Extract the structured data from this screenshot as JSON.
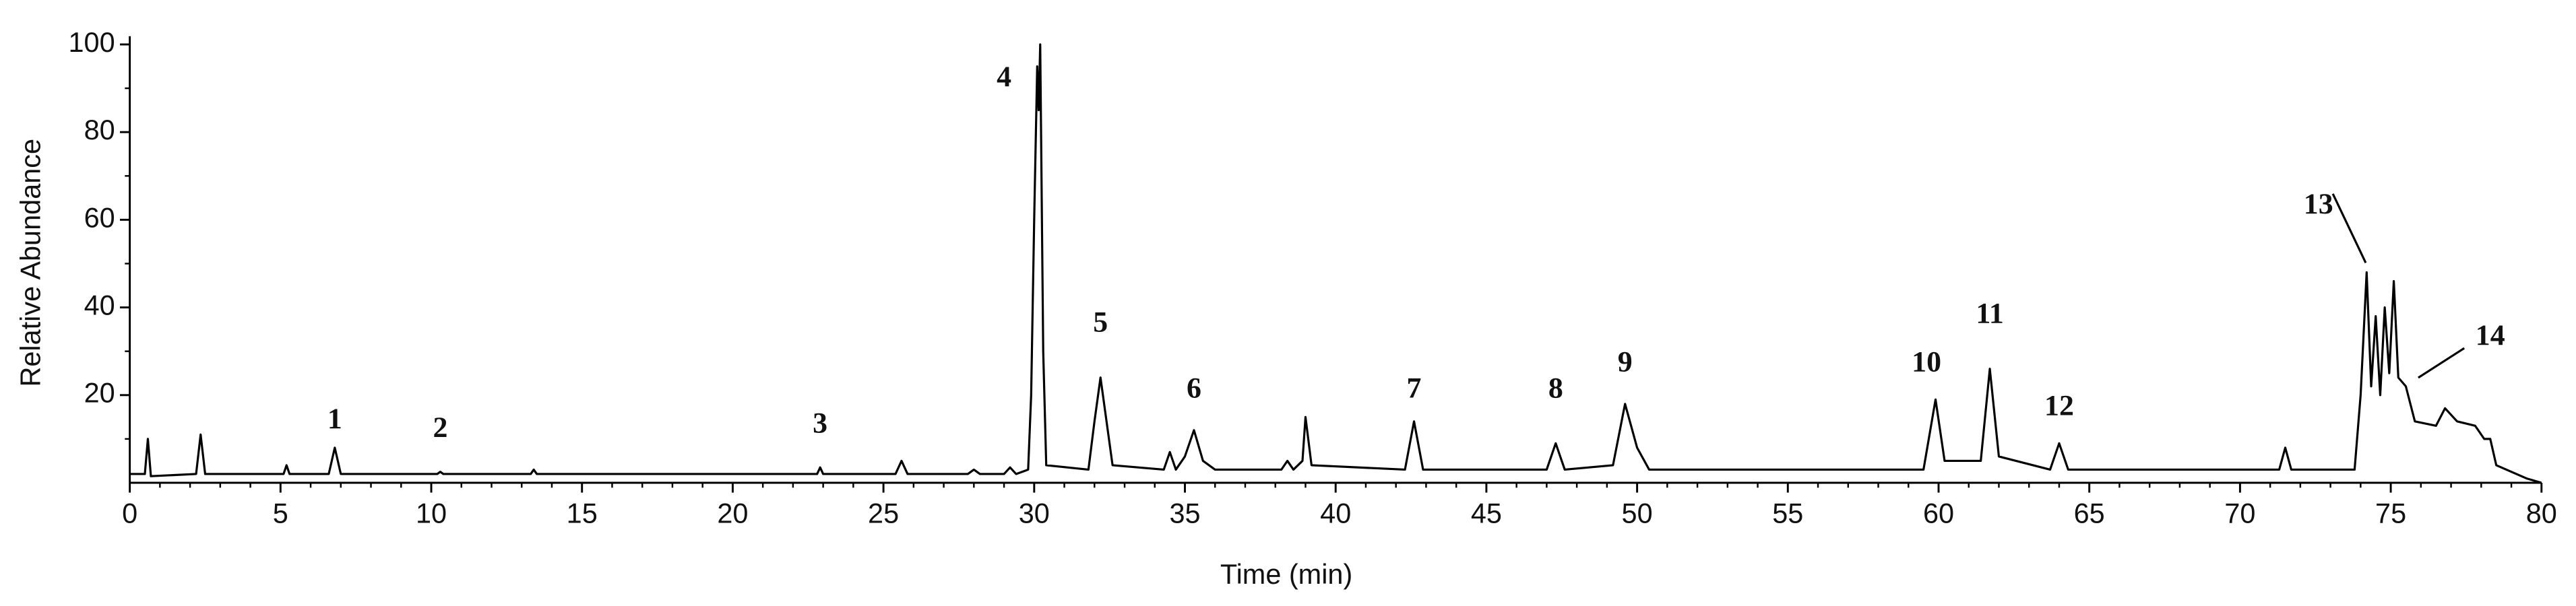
{
  "chart_data": {
    "type": "line",
    "x_label": "Time (min)",
    "y_label": "Relative Abundance",
    "xlim": [
      0,
      80
    ],
    "ylim": [
      0,
      100
    ],
    "xticks": [
      0,
      5,
      10,
      15,
      20,
      25,
      30,
      35,
      40,
      45,
      50,
      55,
      60,
      65,
      70,
      75,
      80
    ],
    "yticks": [
      20,
      40,
      60,
      80,
      100
    ],
    "color": "#000000",
    "x": [
      0,
      0.5,
      0.6,
      0.7,
      2.2,
      2.35,
      2.5,
      2.8,
      5.1,
      5.2,
      5.3,
      6.6,
      6.8,
      7.0,
      10.2,
      10.3,
      10.4,
      13.3,
      13.4,
      13.5,
      22.8,
      22.9,
      23.0,
      25.4,
      25.6,
      25.8,
      27.8,
      28.0,
      28.2,
      29.0,
      29.2,
      29.4,
      29.8,
      29.9,
      30.0,
      30.1,
      30.15,
      30.2,
      30.3,
      30.4,
      31.8,
      32.0,
      32.2,
      32.4,
      32.6,
      34.3,
      34.5,
      34.7,
      35.0,
      35.3,
      35.6,
      36.0,
      38.2,
      38.4,
      38.6,
      38.9,
      39.0,
      39.2,
      42.3,
      42.6,
      42.9,
      47.0,
      47.3,
      47.6,
      49.2,
      49.6,
      50.0,
      50.4,
      59.5,
      59.9,
      60.2,
      61.4,
      61.7,
      62.0,
      63.7,
      64.0,
      64.3,
      71.3,
      71.5,
      71.7,
      73.8,
      74.0,
      74.2,
      74.35,
      74.5,
      74.65,
      74.8,
      74.95,
      75.1,
      75.25,
      75.5,
      75.8,
      76.5,
      76.8,
      77.2,
      77.8,
      78.1,
      78.3,
      78.5,
      79.5,
      80
    ],
    "values": [
      2,
      2,
      10,
      1.5,
      2,
      11,
      2,
      2,
      2,
      4,
      2,
      2,
      8,
      2,
      2,
      2.5,
      2,
      2,
      3,
      2,
      2,
      3.5,
      2,
      2,
      5,
      2,
      2,
      3,
      2,
      2,
      3.5,
      2,
      3,
      20,
      60,
      95,
      85,
      100,
      30,
      4,
      3,
      14,
      24,
      14,
      4,
      3,
      7,
      3,
      6,
      12,
      5,
      3,
      3,
      5,
      3,
      5,
      15,
      4,
      3,
      14,
      3,
      3,
      9,
      3,
      4,
      18,
      8,
      3,
      3,
      19,
      5,
      5,
      26,
      6,
      3,
      9,
      3,
      3,
      8,
      3,
      3,
      20,
      48,
      22,
      38,
      20,
      40,
      25,
      46,
      24,
      22,
      14,
      13,
      17,
      14,
      13,
      10,
      10,
      4,
      1,
      0
    ],
    "annotations": [
      {
        "text": "1",
        "x": 6.8,
        "y": 14
      },
      {
        "text": "2",
        "x": 10.3,
        "y": 12
      },
      {
        "text": "3",
        "x": 22.9,
        "y": 13
      },
      {
        "text": "4",
        "x": 29.0,
        "y": 92
      },
      {
        "text": "5",
        "x": 32.2,
        "y": 36
      },
      {
        "text": "6",
        "x": 35.3,
        "y": 21
      },
      {
        "text": "7",
        "x": 42.6,
        "y": 21
      },
      {
        "text": "8",
        "x": 47.3,
        "y": 21
      },
      {
        "text": "9",
        "x": 49.6,
        "y": 27
      },
      {
        "text": "10",
        "x": 59.6,
        "y": 27
      },
      {
        "text": "11",
        "x": 61.7,
        "y": 38
      },
      {
        "text": "12",
        "x": 64.0,
        "y": 17
      },
      {
        "text": "13",
        "x": 72.6,
        "y": 63
      },
      {
        "text": "14",
        "x": 78.3,
        "y": 33
      }
    ]
  }
}
